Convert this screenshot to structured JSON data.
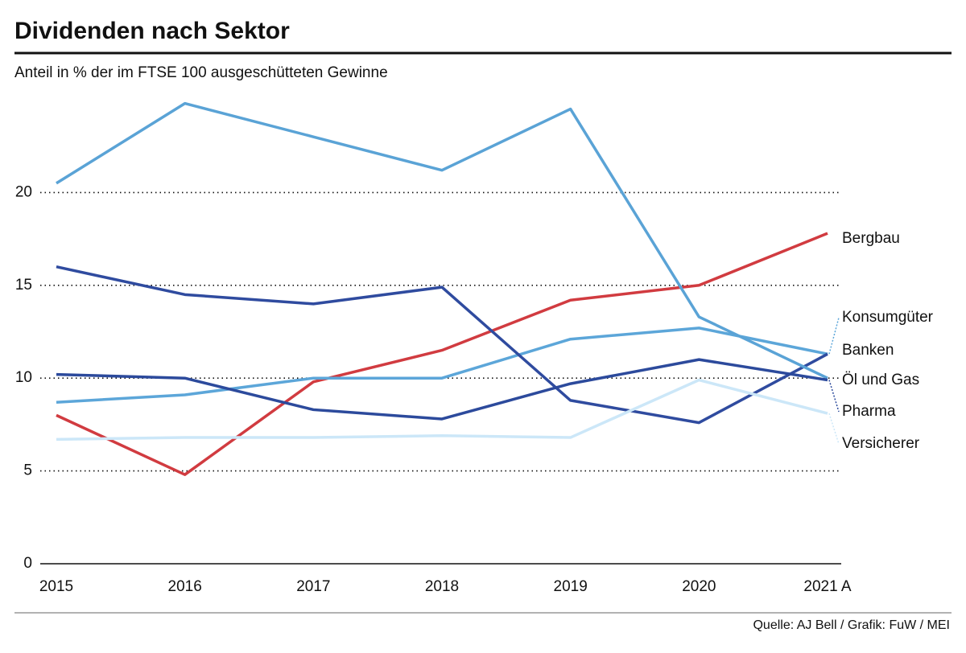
{
  "chart_data": {
    "type": "line",
    "title": "Dividenden nach Sektor",
    "subtitle": "Anteil in % der im FTSE 100 ausgeschütteten Gewinne",
    "source": "Quelle: AJ Bell / Grafik: FuW / MEI",
    "categories": [
      "2015",
      "2016",
      "2017",
      "2018",
      "2019",
      "2020",
      "2021 A"
    ],
    "ylim": [
      0,
      25
    ],
    "yticks": [
      0,
      5,
      10,
      15,
      20
    ],
    "grid": true,
    "series": [
      {
        "name": "Bergbau",
        "color": "#d13b40",
        "values": [
          8,
          4.8,
          9.8,
          11.5,
          14.2,
          15,
          17.8
        ]
      },
      {
        "name": "Konsumgüter",
        "color": "#5ca6d9",
        "values": [
          8.7,
          9.1,
          10,
          10,
          12.1,
          12.7,
          11.3
        ]
      },
      {
        "name": "Banken",
        "color": "#2f4b9f",
        "values": [
          16,
          14.5,
          14,
          14.9,
          8.8,
          7.6,
          11.3
        ]
      },
      {
        "name": "Öl und Gas",
        "color": "#5aa3d6",
        "values": [
          20.5,
          24.8,
          23,
          21.2,
          24.5,
          13.3,
          10
        ]
      },
      {
        "name": "Pharma",
        "color": "#2c4a9c",
        "values": [
          10.2,
          10,
          8.3,
          7.8,
          9.7,
          11,
          9.9
        ]
      },
      {
        "name": "Versicherer",
        "color": "#cce7f8",
        "values": [
          6.7,
          6.8,
          6.8,
          6.9,
          6.8,
          9.9,
          8.1
        ]
      }
    ]
  }
}
